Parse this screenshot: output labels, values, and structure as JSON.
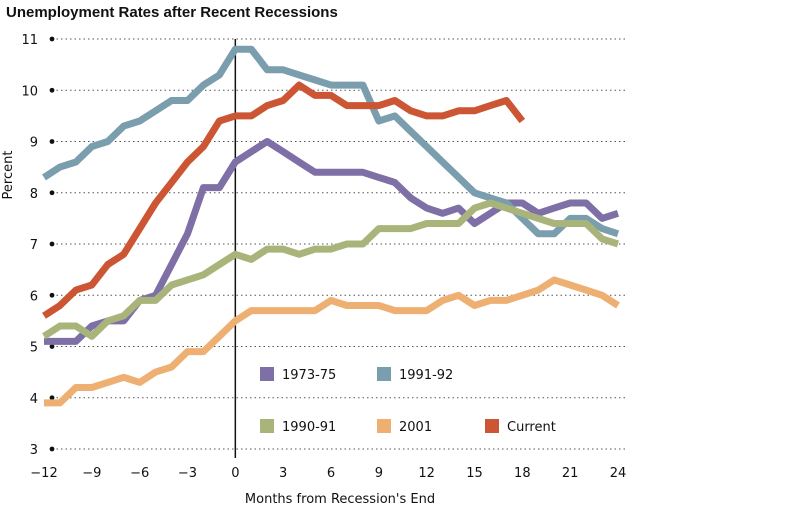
{
  "chart_data": {
    "type": "line",
    "title": "Unemployment Rates after Recent Recessions",
    "xlabel": "Months from Recession's End",
    "ylabel": "Percent",
    "xlim": [
      -12,
      24
    ],
    "ylim": [
      3,
      11
    ],
    "xticks": [
      -12,
      -9,
      -6,
      -3,
      0,
      3,
      6,
      9,
      12,
      15,
      18,
      21,
      24
    ],
    "yticks": [
      3,
      4,
      5,
      6,
      7,
      8,
      9,
      10,
      11
    ],
    "grid": "horizontal dotted",
    "legend_position": "inside-bottom-center",
    "series": [
      {
        "name": "1973-75",
        "color": "#7e6fa6",
        "x": [
          -12,
          -11,
          -10,
          -9,
          -8,
          -7,
          -6,
          -5,
          -4,
          -3,
          -2,
          -1,
          0,
          1,
          2,
          3,
          4,
          5,
          6,
          7,
          8,
          9,
          10,
          11,
          12,
          13,
          14,
          15,
          16,
          17,
          18,
          19,
          20,
          21,
          22,
          23,
          24
        ],
        "y": [
          5.1,
          5.1,
          5.1,
          5.4,
          5.5,
          5.5,
          5.9,
          6.0,
          6.6,
          7.2,
          8.1,
          8.1,
          8.6,
          8.8,
          9.0,
          8.8,
          8.6,
          8.4,
          8.4,
          8.4,
          8.4,
          8.3,
          8.2,
          7.9,
          7.7,
          7.6,
          7.7,
          7.4,
          7.6,
          7.8,
          7.8,
          7.6,
          7.7,
          7.8,
          7.8,
          7.5,
          7.6
        ]
      },
      {
        "name": "1991-92",
        "color": "#7a9eae",
        "x": [
          -12,
          -11,
          -10,
          -9,
          -8,
          -7,
          -6,
          -5,
          -4,
          -3,
          -2,
          -1,
          0,
          1,
          2,
          3,
          4,
          5,
          6,
          7,
          8,
          9,
          10,
          11,
          12,
          13,
          14,
          15,
          16,
          17,
          18,
          19,
          20,
          21,
          22,
          23,
          24
        ],
        "y": [
          8.3,
          8.5,
          8.6,
          8.9,
          9.0,
          9.3,
          9.4,
          9.6,
          9.8,
          9.8,
          10.1,
          10.3,
          10.8,
          10.8,
          10.4,
          10.4,
          10.3,
          10.2,
          10.1,
          10.1,
          10.1,
          9.4,
          9.5,
          9.2,
          8.9,
          8.6,
          8.3,
          8.0,
          7.9,
          7.8,
          7.5,
          7.2,
          7.2,
          7.5,
          7.5,
          7.3,
          7.2
        ]
      },
      {
        "name": "1990-91",
        "color": "#a8b47a",
        "x": [
          -12,
          -11,
          -10,
          -9,
          -8,
          -7,
          -6,
          -5,
          -4,
          -3,
          -2,
          -1,
          0,
          1,
          2,
          3,
          4,
          5,
          6,
          7,
          8,
          9,
          10,
          11,
          12,
          13,
          14,
          15,
          16,
          17,
          18,
          19,
          20,
          21,
          22,
          23,
          24
        ],
        "y": [
          5.2,
          5.4,
          5.4,
          5.2,
          5.5,
          5.6,
          5.9,
          5.9,
          6.2,
          6.3,
          6.4,
          6.6,
          6.8,
          6.7,
          6.9,
          6.9,
          6.8,
          6.9,
          6.9,
          7.0,
          7.0,
          7.3,
          7.3,
          7.3,
          7.4,
          7.4,
          7.4,
          7.7,
          7.8,
          7.7,
          7.6,
          7.5,
          7.4,
          7.4,
          7.4,
          7.1,
          7.0
        ]
      },
      {
        "name": "2001",
        "color": "#eeb072",
        "x": [
          -12,
          -11,
          -10,
          -9,
          -8,
          -7,
          -6,
          -5,
          -4,
          -3,
          -2,
          -1,
          0,
          1,
          2,
          3,
          4,
          5,
          6,
          7,
          8,
          9,
          10,
          11,
          12,
          13,
          14,
          15,
          16,
          17,
          18,
          19,
          20,
          21,
          22,
          23,
          24
        ],
        "y": [
          3.9,
          3.9,
          4.2,
          4.2,
          4.3,
          4.4,
          4.3,
          4.5,
          4.6,
          4.9,
          4.9,
          5.2,
          5.5,
          5.7,
          5.7,
          5.7,
          5.7,
          5.7,
          5.9,
          5.8,
          5.8,
          5.8,
          5.7,
          5.7,
          5.7,
          5.9,
          6.0,
          5.8,
          5.9,
          5.9,
          6.0,
          6.1,
          6.3,
          6.2,
          6.1,
          6.0,
          5.8
        ]
      },
      {
        "name": "Current",
        "color": "#cc5533",
        "x": [
          -12,
          -11,
          -10,
          -9,
          -8,
          -7,
          -6,
          -5,
          -4,
          -3,
          -2,
          -1,
          0,
          1,
          2,
          3,
          4,
          5,
          6,
          7,
          8,
          9,
          10,
          11,
          12,
          13,
          14,
          15,
          16,
          17,
          18,
          19
        ],
        "y": [
          5.6,
          5.8,
          6.1,
          6.2,
          6.6,
          6.8,
          7.3,
          7.8,
          8.2,
          8.6,
          8.9,
          9.4,
          9.5,
          9.5,
          9.7,
          9.8,
          10.1,
          9.9,
          9.9,
          9.7,
          9.7,
          9.7,
          9.8,
          9.6,
          9.5,
          9.5,
          9.6,
          9.6,
          9.7,
          9.8,
          9.4,
          null
        ]
      }
    ],
    "legend": [
      {
        "name": "1973-75",
        "color": "#7e6fa6"
      },
      {
        "name": "1991-92",
        "color": "#7a9eae"
      },
      {
        "name": "1990-91",
        "color": "#a8b47a"
      },
      {
        "name": "2001",
        "color": "#eeb072"
      },
      {
        "name": "Current",
        "color": "#cc5533"
      }
    ]
  }
}
